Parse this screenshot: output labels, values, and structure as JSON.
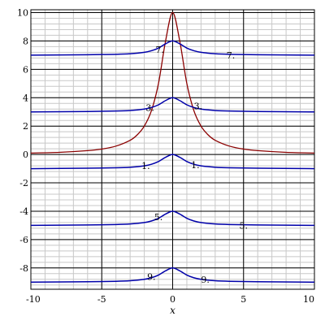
{
  "chart_data": {
    "type": "line",
    "title": "",
    "xlabel": "x",
    "ylabel": "",
    "xlim": [
      -10,
      10
    ],
    "ylim": [
      -9.5,
      10.2
    ],
    "x_ticks": [
      -10,
      -5,
      0,
      5,
      10
    ],
    "x_tick_labels": [
      "-10",
      "-5",
      "0",
      "5",
      "10"
    ],
    "y_ticks": [
      -8,
      -6,
      -4,
      -2,
      0,
      2,
      4,
      6,
      8,
      10
    ],
    "y_tick_labels": [
      "-8",
      "-6",
      "-4",
      "-2",
      "0",
      "2",
      "4",
      "6",
      "8",
      "10"
    ],
    "grid": true,
    "legend": "none",
    "colors": {
      "curve": "#8b0000",
      "contours": "#0000aa",
      "grid": "#c8c8c8",
      "grid_major": "#000000"
    },
    "series": [
      {
        "color": "#8b0000",
        "x": [
          -10,
          -8,
          -6,
          -5,
          -4,
          -3,
          -2.5,
          -2,
          -1.5,
          -1,
          -0.5,
          0,
          0.5,
          1,
          1.5,
          2,
          2.5,
          3,
          4,
          5,
          6,
          8,
          10
        ],
        "y": [
          0.1,
          0.15,
          0.27,
          0.38,
          0.59,
          1.0,
          1.38,
          2.0,
          3.08,
          5.0,
          8.0,
          10.0,
          8.0,
          5.0,
          3.08,
          2.0,
          1.38,
          1.0,
          0.59,
          0.38,
          0.27,
          0.15,
          0.1
        ]
      },
      {
        "color": "#0000aa",
        "x": [
          -10,
          -6,
          -4,
          -3,
          -2,
          -1.5,
          -1,
          -0.5,
          0,
          0.5,
          1,
          1.5,
          2,
          3,
          4,
          6,
          10
        ],
        "y": [
          7.0,
          7.03,
          7.06,
          7.1,
          7.2,
          7.31,
          7.5,
          7.8,
          8.0,
          7.8,
          7.5,
          7.31,
          7.2,
          7.1,
          7.06,
          7.03,
          7.0
        ]
      },
      {
        "color": "#0000aa",
        "x": [
          -10,
          -6,
          -4,
          -3,
          -2,
          -1.5,
          -1,
          -0.5,
          0,
          0.5,
          1,
          1.5,
          2,
          3,
          4,
          6,
          10
        ],
        "y": [
          3.0,
          3.03,
          3.06,
          3.1,
          3.2,
          3.31,
          3.5,
          3.8,
          4.0,
          3.8,
          3.5,
          3.31,
          3.2,
          3.1,
          3.06,
          3.03,
          3.0
        ]
      },
      {
        "color": "#0000aa",
        "x": [
          -10,
          -6,
          -4,
          -3,
          -2,
          -1.5,
          -1,
          -0.5,
          0,
          0.5,
          1,
          1.5,
          2,
          3,
          4,
          6,
          10
        ],
        "y": [
          -1.0,
          -0.97,
          -0.94,
          -0.9,
          -0.8,
          -0.69,
          -0.5,
          -0.2,
          0.0,
          -0.2,
          -0.5,
          -0.69,
          -0.8,
          -0.9,
          -0.94,
          -0.97,
          -1.0
        ]
      },
      {
        "color": "#0000aa",
        "x": [
          -10,
          -6,
          -4,
          -3,
          -2,
          -1.5,
          -1,
          -0.5,
          0,
          0.5,
          1,
          1.5,
          2,
          3,
          4,
          6,
          10
        ],
        "y": [
          -5.0,
          -4.97,
          -4.94,
          -4.9,
          -4.8,
          -4.69,
          -4.5,
          -4.2,
          -4.0,
          -4.2,
          -4.5,
          -4.69,
          -4.8,
          -4.9,
          -4.94,
          -4.97,
          -5.0
        ]
      },
      {
        "color": "#0000aa",
        "x": [
          -10,
          -6,
          -4,
          -3,
          -2,
          -1.5,
          -1,
          -0.5,
          0,
          0.5,
          1,
          1.5,
          2,
          3,
          4,
          6,
          10
        ],
        "y": [
          -9.0,
          -8.97,
          -8.94,
          -8.9,
          -8.8,
          -8.69,
          -8.5,
          -8.2,
          -8.0,
          -8.2,
          -8.5,
          -8.69,
          -8.8,
          -8.9,
          -8.94,
          -8.97,
          -9.0
        ]
      }
    ],
    "annotations": [
      {
        "text": "7.",
        "x": -0.9,
        "y": 7.4
      },
      {
        "text": "7.",
        "x": 4.1,
        "y": 7.0
      },
      {
        "text": "3.",
        "x": -1.6,
        "y": 3.3
      },
      {
        "text": "3.",
        "x": 1.8,
        "y": 3.4
      },
      {
        "text": "1.",
        "x": -1.9,
        "y": -0.8
      },
      {
        "text": "1.",
        "x": 1.6,
        "y": -0.75
      },
      {
        "text": "5.",
        "x": -1.0,
        "y": -4.4
      },
      {
        "text": "5.",
        "x": 5.0,
        "y": -5.0
      },
      {
        "text": "9.",
        "x": -1.5,
        "y": -8.6
      },
      {
        "text": "9.",
        "x": 2.3,
        "y": -8.8
      }
    ]
  }
}
